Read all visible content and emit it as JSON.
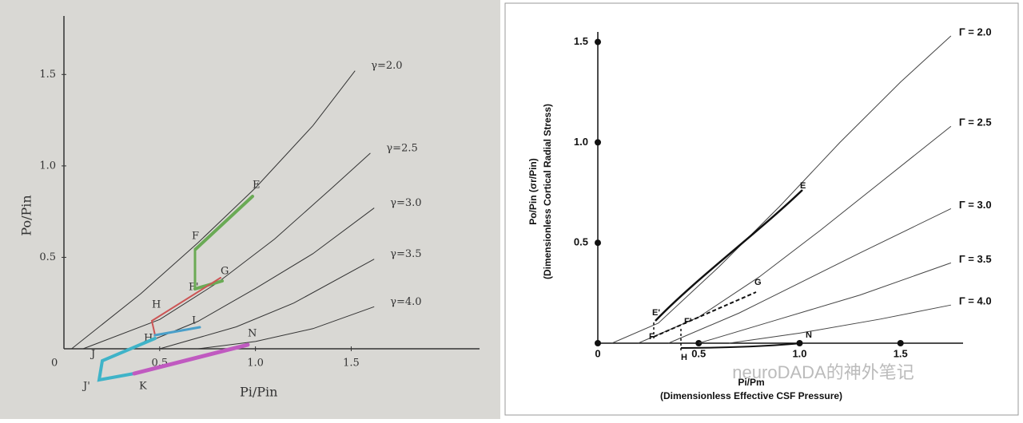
{
  "chart_data": [
    {
      "type": "line",
      "x_label": "Pi/Pin",
      "y_label": "Po/Pin",
      "origin_label": "0",
      "xlim": [
        0,
        2.17
      ],
      "ylim": [
        0,
        1.82
      ],
      "xticks": [
        {
          "value": 0.5,
          "label": "0.5"
        },
        {
          "value": 1,
          "label": "1.0"
        },
        {
          "value": 1.5,
          "label": "1.5"
        }
      ],
      "yticks": [
        {
          "value": 0.5,
          "label": "0.5"
        },
        {
          "value": 1,
          "label": "1.0"
        },
        {
          "value": 1.5,
          "label": "1.5"
        }
      ],
      "series": [
        {
          "name": "γ=2.0",
          "color": "#333",
          "x": [
            0.04,
            0.4,
            0.7,
            1.0,
            1.3,
            1.52
          ],
          "values": [
            0,
            0.3,
            0.58,
            0.88,
            1.22,
            1.52
          ]
        },
        {
          "name": "γ=2.5",
          "color": "#333",
          "x": [
            0.1,
            0.5,
            0.8,
            1.1,
            1.4,
            1.6
          ],
          "values": [
            0,
            0.16,
            0.36,
            0.6,
            0.88,
            1.07
          ]
        },
        {
          "name": "γ=3.0",
          "color": "#333",
          "x": [
            0.35,
            0.7,
            1.0,
            1.3,
            1.62
          ],
          "values": [
            0,
            0.15,
            0.33,
            0.52,
            0.77
          ]
        },
        {
          "name": "γ=3.5",
          "color": "#333",
          "x": [
            0.5,
            0.9,
            1.2,
            1.62
          ],
          "values": [
            0,
            0.12,
            0.25,
            0.49
          ]
        },
        {
          "name": "γ=4.0",
          "color": "#333",
          "x": [
            0.7,
            1.0,
            1.3,
            1.62
          ],
          "values": [
            0,
            0.04,
            0.11,
            0.23
          ]
        }
      ],
      "annotations": [
        "E",
        "F",
        "F'",
        "G",
        "H",
        "H'",
        "I",
        "J",
        "J'",
        "K",
        "N"
      ]
    },
    {
      "type": "line",
      "x_label": "Pi/Pm",
      "x_sublabel": "(Dimensionless Effective CSF Pressure)",
      "y_label": "Po/Pin (σr/Pin)",
      "y_sublabel": "(Dimensionless Cortical Radial Stress)",
      "xlim": [
        0,
        1.81
      ],
      "ylim": [
        0,
        1.55
      ],
      "xticks": [
        0,
        0.5,
        {
          "value": 1,
          "label": "1.0"
        },
        1.5
      ],
      "yticks": [
        0.5,
        {
          "value": 1,
          "label": "1.0"
        },
        1.5
      ],
      "series": [
        {
          "name": "Γ = 2.0",
          "color": "#444",
          "x": [
            0.07,
            0.3,
            0.6,
            0.9,
            1.2,
            1.5,
            1.75
          ],
          "values": [
            0,
            0.1,
            0.38,
            0.68,
            1.0,
            1.3,
            1.53
          ]
        },
        {
          "name": "Γ = 2.5",
          "color": "#444",
          "x": [
            0.2,
            0.5,
            0.8,
            1.1,
            1.4,
            1.75
          ],
          "values": [
            0,
            0.13,
            0.33,
            0.56,
            0.8,
            1.08
          ]
        },
        {
          "name": "Γ = 3.0",
          "color": "#444",
          "x": [
            0.35,
            0.7,
            1.0,
            1.3,
            1.75
          ],
          "values": [
            0,
            0.15,
            0.3,
            0.45,
            0.67
          ]
        },
        {
          "name": "Γ = 3.5",
          "color": "#444",
          "x": [
            0.5,
            0.9,
            1.3,
            1.75
          ],
          "values": [
            0,
            0.12,
            0.24,
            0.4
          ]
        },
        {
          "name": "Γ = 4.0",
          "color": "#444",
          "x": [
            0.65,
            1.0,
            1.4,
            1.75
          ],
          "values": [
            0,
            0.05,
            0.12,
            0.19
          ]
        }
      ],
      "annotations": [
        "E",
        "E'",
        "F",
        "F'",
        "G",
        "H",
        "N"
      ]
    }
  ],
  "watermark": "neuroDADA的神外笔记"
}
